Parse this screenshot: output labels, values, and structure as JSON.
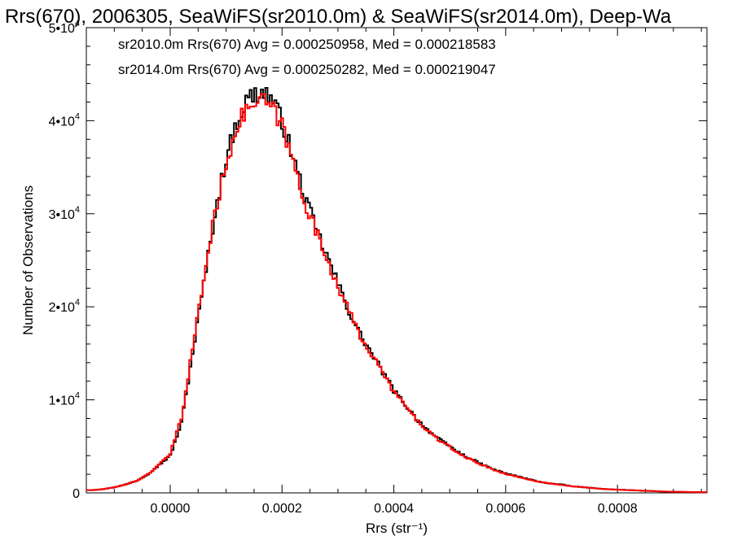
{
  "chart_data": {
    "type": "line",
    "step": true,
    "title": "Rrs(670), 2006305, SeaWiFS(sr2010.0m) & SeaWiFS(sr2014.0m), Deep-Wa",
    "xlabel": "Rrs (str⁻¹)",
    "ylabel": "Number of Observations",
    "xlim": [
      -0.00015,
      0.00096
    ],
    "ylim": [
      0,
      50000
    ],
    "xticks": [
      0.0,
      0.0002,
      0.0004,
      0.0006,
      0.0008
    ],
    "xtick_labels": [
      "0.0000",
      "0.0002",
      "0.0004",
      "0.0006",
      "0.0008"
    ],
    "yticks": [
      0,
      10000,
      20000,
      30000,
      40000,
      50000
    ],
    "ytick_labels": [
      {
        "base": "0",
        "exp": ""
      },
      {
        "base": "1•10",
        "exp": "4"
      },
      {
        "base": "2•10",
        "exp": "4"
      },
      {
        "base": "3•10",
        "exp": "4"
      },
      {
        "base": "4•10",
        "exp": "4"
      },
      {
        "base": "5•10",
        "exp": "4"
      }
    ],
    "annotations": [
      {
        "text": "sr2010.0m Rrs(670) Avg = 0.000250958, Med = 0.000218583",
        "color": "#000000"
      },
      {
        "text": "sr2014.0m Rrs(670) Avg = 0.000250282, Med = 0.000219047",
        "color": "#ff0000"
      }
    ],
    "bin_width": 4e-06,
    "series": [
      {
        "color": "#000000",
        "x": [
          -0.00014,
          -0.00012,
          -0.0001,
          -8e-05,
          -6e-05,
          -4e-05,
          -2e-05,
          0.0,
          2e-05,
          4e-05,
          6e-05,
          8e-05,
          0.0001,
          0.00012,
          0.00014,
          0.00016,
          0.00017,
          0.00018,
          0.0002,
          0.00022,
          0.00024,
          0.00026,
          0.00028,
          0.0003,
          0.00032,
          0.00034,
          0.00036,
          0.00038,
          0.0004,
          0.00042,
          0.00044,
          0.00046,
          0.00048,
          0.0005,
          0.00052,
          0.00054,
          0.00056,
          0.00058,
          0.0006,
          0.00062,
          0.00064,
          0.00066,
          0.00068,
          0.0007,
          0.00072,
          0.00074,
          0.00076,
          0.00078,
          0.0008,
          0.00082,
          0.00084,
          0.00086,
          0.00088,
          0.0009,
          0.00092,
          0.00094,
          0.00096
        ],
        "values": [
          300,
          400,
          600,
          900,
          1300,
          2000,
          3000,
          4000,
          7500,
          15000,
          22500,
          30000,
          36000,
          40000,
          42500,
          43000,
          43000,
          42500,
          40000,
          36000,
          32000,
          28500,
          25500,
          22500,
          19500,
          17000,
          15000,
          13000,
          11000,
          9500,
          8000,
          6800,
          5800,
          5000,
          4200,
          3600,
          3000,
          2500,
          2100,
          1800,
          1500,
          1200,
          1000,
          900,
          700,
          600,
          500,
          400,
          350,
          300,
          250,
          200,
          150,
          120,
          100,
          80,
          60
        ]
      },
      {
        "color": "#ff0000",
        "x": [
          -0.00014,
          -0.00012,
          -0.0001,
          -8e-05,
          -6e-05,
          -4e-05,
          -2e-05,
          0.0,
          2e-05,
          4e-05,
          6e-05,
          8e-05,
          0.0001,
          0.00012,
          0.00014,
          0.00016,
          0.00017,
          0.00018,
          0.0002,
          0.00022,
          0.00024,
          0.00026,
          0.00028,
          0.0003,
          0.00032,
          0.00034,
          0.00036,
          0.00038,
          0.0004,
          0.00042,
          0.00044,
          0.00046,
          0.00048,
          0.0005,
          0.00052,
          0.00054,
          0.00056,
          0.00058,
          0.0006,
          0.00062,
          0.00064,
          0.00066,
          0.00068,
          0.0007,
          0.00072,
          0.00074,
          0.00076,
          0.00078,
          0.0008,
          0.00082,
          0.00084,
          0.00086,
          0.00088,
          0.0009,
          0.00092,
          0.00094,
          0.00096
        ],
        "values": [
          300,
          400,
          600,
          900,
          1300,
          2000,
          3000,
          4200,
          8000,
          15500,
          23000,
          30000,
          35500,
          39500,
          41500,
          42000,
          42000,
          41500,
          39500,
          35500,
          31500,
          28200,
          25200,
          22300,
          19400,
          16900,
          14900,
          12900,
          10900,
          9400,
          7900,
          6700,
          5700,
          4900,
          4100,
          3500,
          2950,
          2450,
          2050,
          1750,
          1450,
          1200,
          1000,
          850,
          700,
          600,
          500,
          400,
          350,
          300,
          250,
          200,
          150,
          120,
          100,
          80,
          60
        ]
      }
    ]
  }
}
